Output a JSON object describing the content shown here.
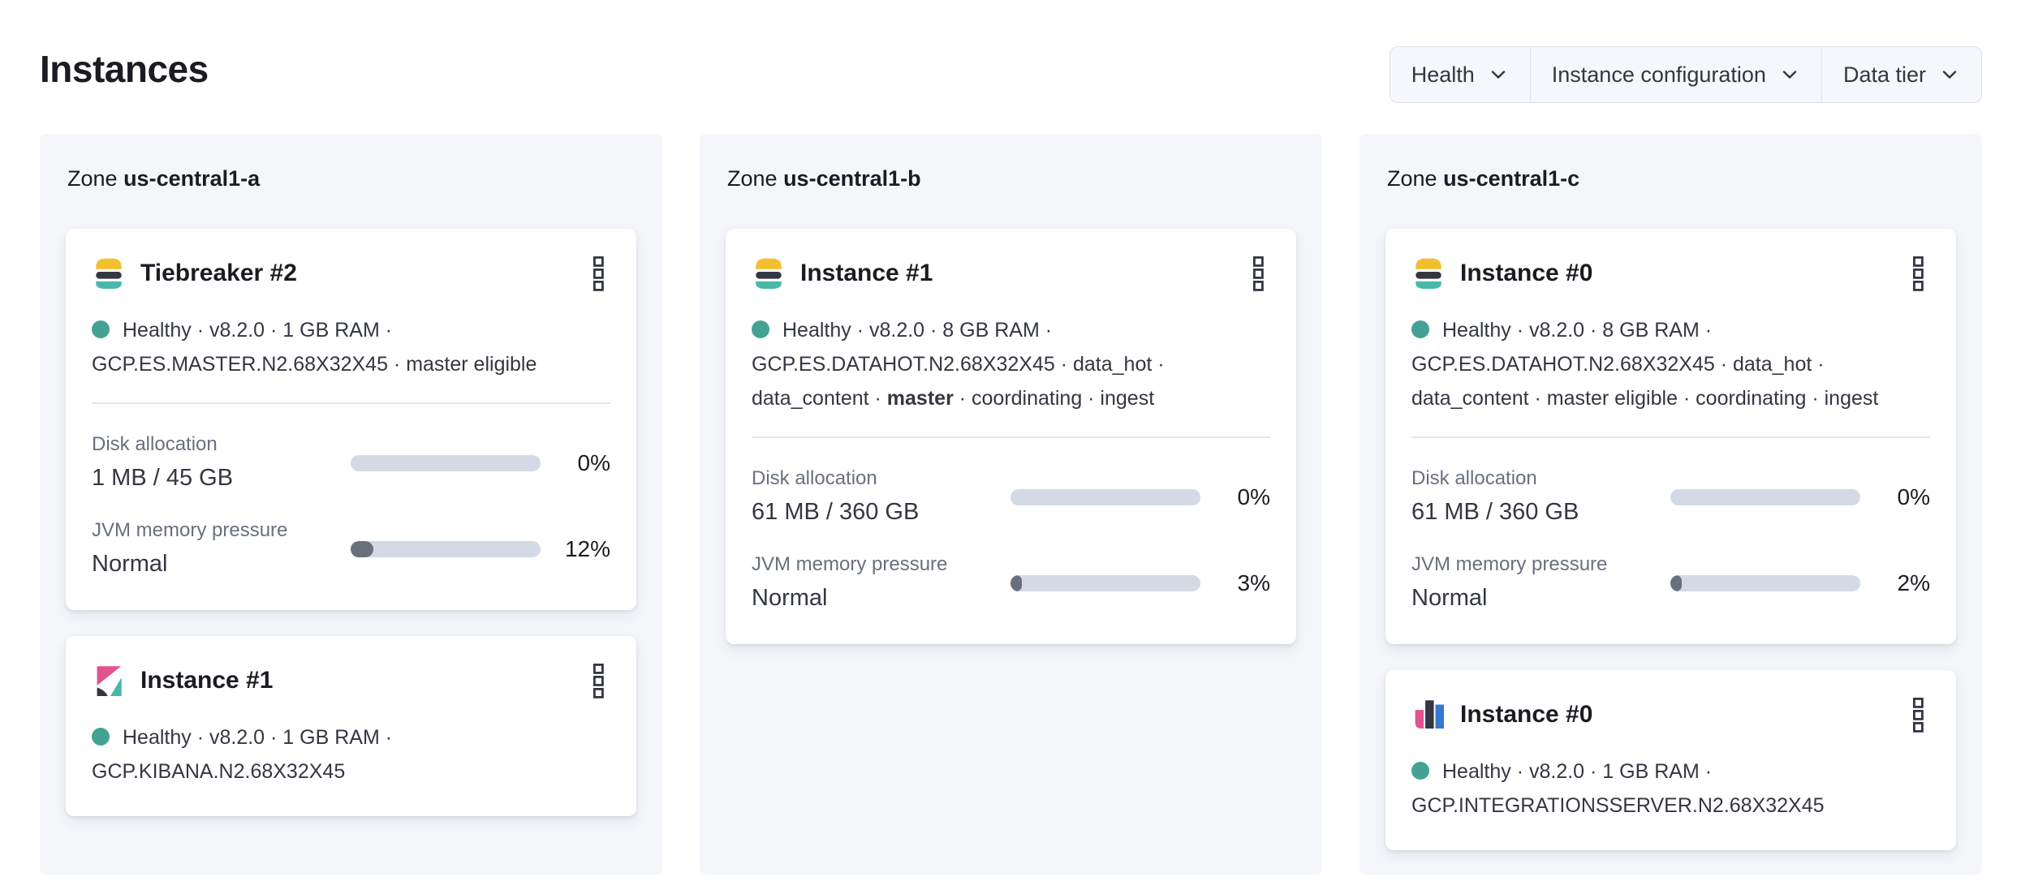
{
  "page": {
    "title": "Instances"
  },
  "filters": {
    "health_label": "Health",
    "instance_configuration_label": "Instance configuration",
    "data_tier_label": "Data tier"
  },
  "colors": {
    "es_yellow": "#f2c02e",
    "es_teal": "#49b8ab",
    "es_dark": "#343741",
    "kibana_pink": "#e2528f",
    "int_blue": "#3577d1",
    "health_dot": "#44a294",
    "bar_track": "#d3dae6",
    "bar_fill": "#69707d",
    "panel_bg": "#f4f6fa"
  },
  "zones": [
    {
      "label": "Zone",
      "name": "us-central1-a",
      "cards": [
        {
          "icon": "elasticsearch-logo",
          "title": "Tiebreaker #2",
          "status": {
            "line1": "Healthy · v8.2.0 · 1 GB RAM ·",
            "line2": "GCP.ES.MASTER.N2.68X32X45 · master eligible"
          },
          "metrics": {
            "disk": {
              "label": "Disk allocation",
              "value": "1 MB / 45 GB",
              "percent": "0%",
              "fill": 0
            },
            "jvm": {
              "label": "JVM memory pressure",
              "value": "Normal",
              "percent": "12%",
              "fill": 12
            }
          }
        },
        {
          "icon": "kibana-logo",
          "title": "Instance #1",
          "status": {
            "line1": "Healthy · v8.2.0 · 1 GB RAM ·",
            "line2": "GCP.KIBANA.N2.68X32X45"
          }
        }
      ]
    },
    {
      "label": "Zone",
      "name": "us-central1-b",
      "cards": [
        {
          "icon": "elasticsearch-logo",
          "title": "Instance #1",
          "status": {
            "line1": "Healthy · v8.2.0 · 8 GB RAM ·",
            "line2": "GCP.ES.DATAHOT.N2.68X32X45 · data_hot ·",
            "line3_pre": "data_content · ",
            "line3_bold": "master",
            "line3_post": " · coordinating · ingest"
          },
          "metrics": {
            "disk": {
              "label": "Disk allocation",
              "value": "61 MB / 360 GB",
              "percent": "0%",
              "fill": 0
            },
            "jvm": {
              "label": "JVM memory pressure",
              "value": "Normal",
              "percent": "3%",
              "fill": 3
            }
          }
        }
      ]
    },
    {
      "label": "Zone",
      "name": "us-central1-c",
      "cards": [
        {
          "icon": "elasticsearch-logo",
          "title": "Instance #0",
          "status": {
            "line1": "Healthy · v8.2.0 · 8 GB RAM ·",
            "line2": "GCP.ES.DATAHOT.N2.68X32X45 · data_hot ·",
            "line3": "data_content · master eligible · coordinating · ingest"
          },
          "metrics": {
            "disk": {
              "label": "Disk allocation",
              "value": "61 MB / 360 GB",
              "percent": "0%",
              "fill": 0
            },
            "jvm": {
              "label": "JVM memory pressure",
              "value": "Normal",
              "percent": "2%",
              "fill": 2
            }
          }
        },
        {
          "icon": "integrations-server-logo",
          "title": "Instance #0",
          "status": {
            "line1": "Healthy · v8.2.0 · 1 GB RAM ·",
            "line2": "GCP.INTEGRATIONSSERVER.N2.68X32X45"
          }
        }
      ]
    }
  ]
}
